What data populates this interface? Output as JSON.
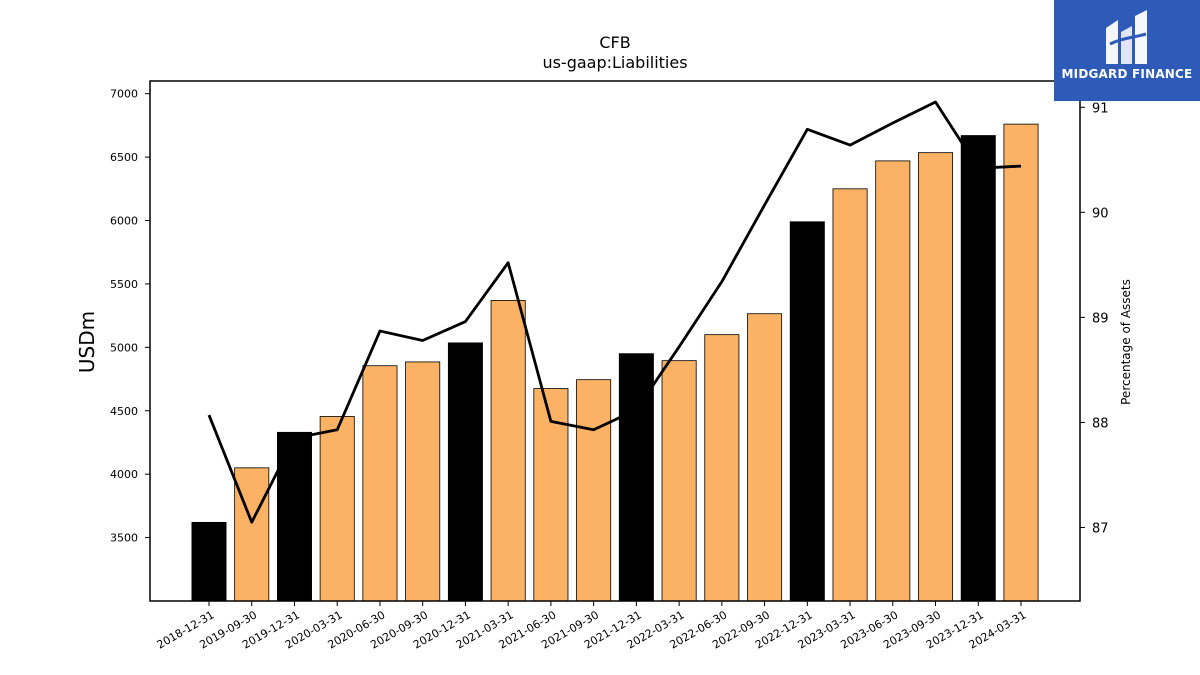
{
  "chart_data": {
    "type": "bar",
    "title": "CFB",
    "subtitle": "us-gaap:Liabilities",
    "ylabel": "USDm",
    "y2label": "Percentage of Assets",
    "categories": [
      "2018-12-31",
      "2019-09-30",
      "2019-12-31",
      "2020-03-31",
      "2020-06-30",
      "2020-09-30",
      "2020-12-31",
      "2021-03-31",
      "2021-06-30",
      "2021-09-30",
      "2021-12-31",
      "2022-03-31",
      "2022-06-30",
      "2022-09-30",
      "2022-12-31",
      "2023-03-31",
      "2023-06-30",
      "2023-09-30",
      "2023-12-31",
      "2024-03-31"
    ],
    "series": [
      {
        "type": "bar",
        "axis": "left",
        "values": [
          3620,
          4050,
          4330,
          4455,
          4855,
          4885,
          5035,
          5370,
          4675,
          4745,
          4950,
          4895,
          5100,
          5265,
          5990,
          6250,
          6470,
          6535,
          6670,
          6760
        ]
      },
      {
        "type": "line",
        "axis": "right",
        "values": [
          88.07,
          87.05,
          87.85,
          87.93,
          88.87,
          88.78,
          88.96,
          89.52,
          88.01,
          87.93,
          88.12,
          88.72,
          89.34,
          90.07,
          90.79,
          90.64,
          90.85,
          91.05,
          90.42,
          90.44
        ]
      }
    ],
    "bar_colors": {
      "year_end": "#000000",
      "interim": "#fbb264"
    },
    "line_color": "#000000",
    "ylim": [
      3000,
      7100
    ],
    "y2lim": [
      86.3,
      91.25
    ],
    "yticks": [
      3500,
      4000,
      4500,
      5000,
      5500,
      6000,
      6500,
      7000
    ],
    "y2ticks": [
      87,
      88,
      89,
      90,
      91
    ],
    "grid": false,
    "legend": "none"
  },
  "logo": {
    "text": "MIDGARD FINANCE",
    "background": "#2e5bb8"
  }
}
